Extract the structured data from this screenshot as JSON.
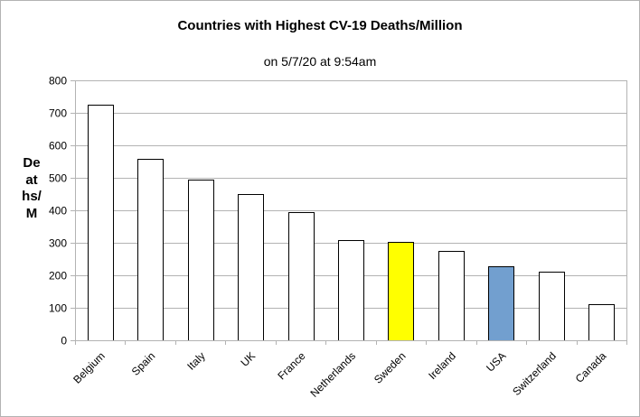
{
  "chart_data": {
    "type": "bar",
    "title": "Countries with Highest CV-19 Deaths/Million",
    "subtitle": "on 5/7/20 at 9:54am",
    "xlabel": "",
    "ylabel": "Deaths/M",
    "ylim": [
      0,
      800
    ],
    "yticks": [
      0,
      100,
      200,
      300,
      400,
      500,
      600,
      700,
      800
    ],
    "grid": true,
    "legend": "none",
    "categories": [
      "Belgium",
      "Spain",
      "Italy",
      "UK",
      "France",
      "Netherlands",
      "Sweden",
      "Ireland",
      "USA",
      "Switzerland",
      "Canada"
    ],
    "values": [
      724,
      558,
      494,
      450,
      394,
      308,
      302,
      276,
      227,
      210,
      112
    ],
    "bar_colors": [
      "#ffffff",
      "#ffffff",
      "#ffffff",
      "#ffffff",
      "#ffffff",
      "#ffffff",
      "#ffff00",
      "#ffffff",
      "#729fcf",
      "#ffffff",
      "#ffffff"
    ]
  }
}
